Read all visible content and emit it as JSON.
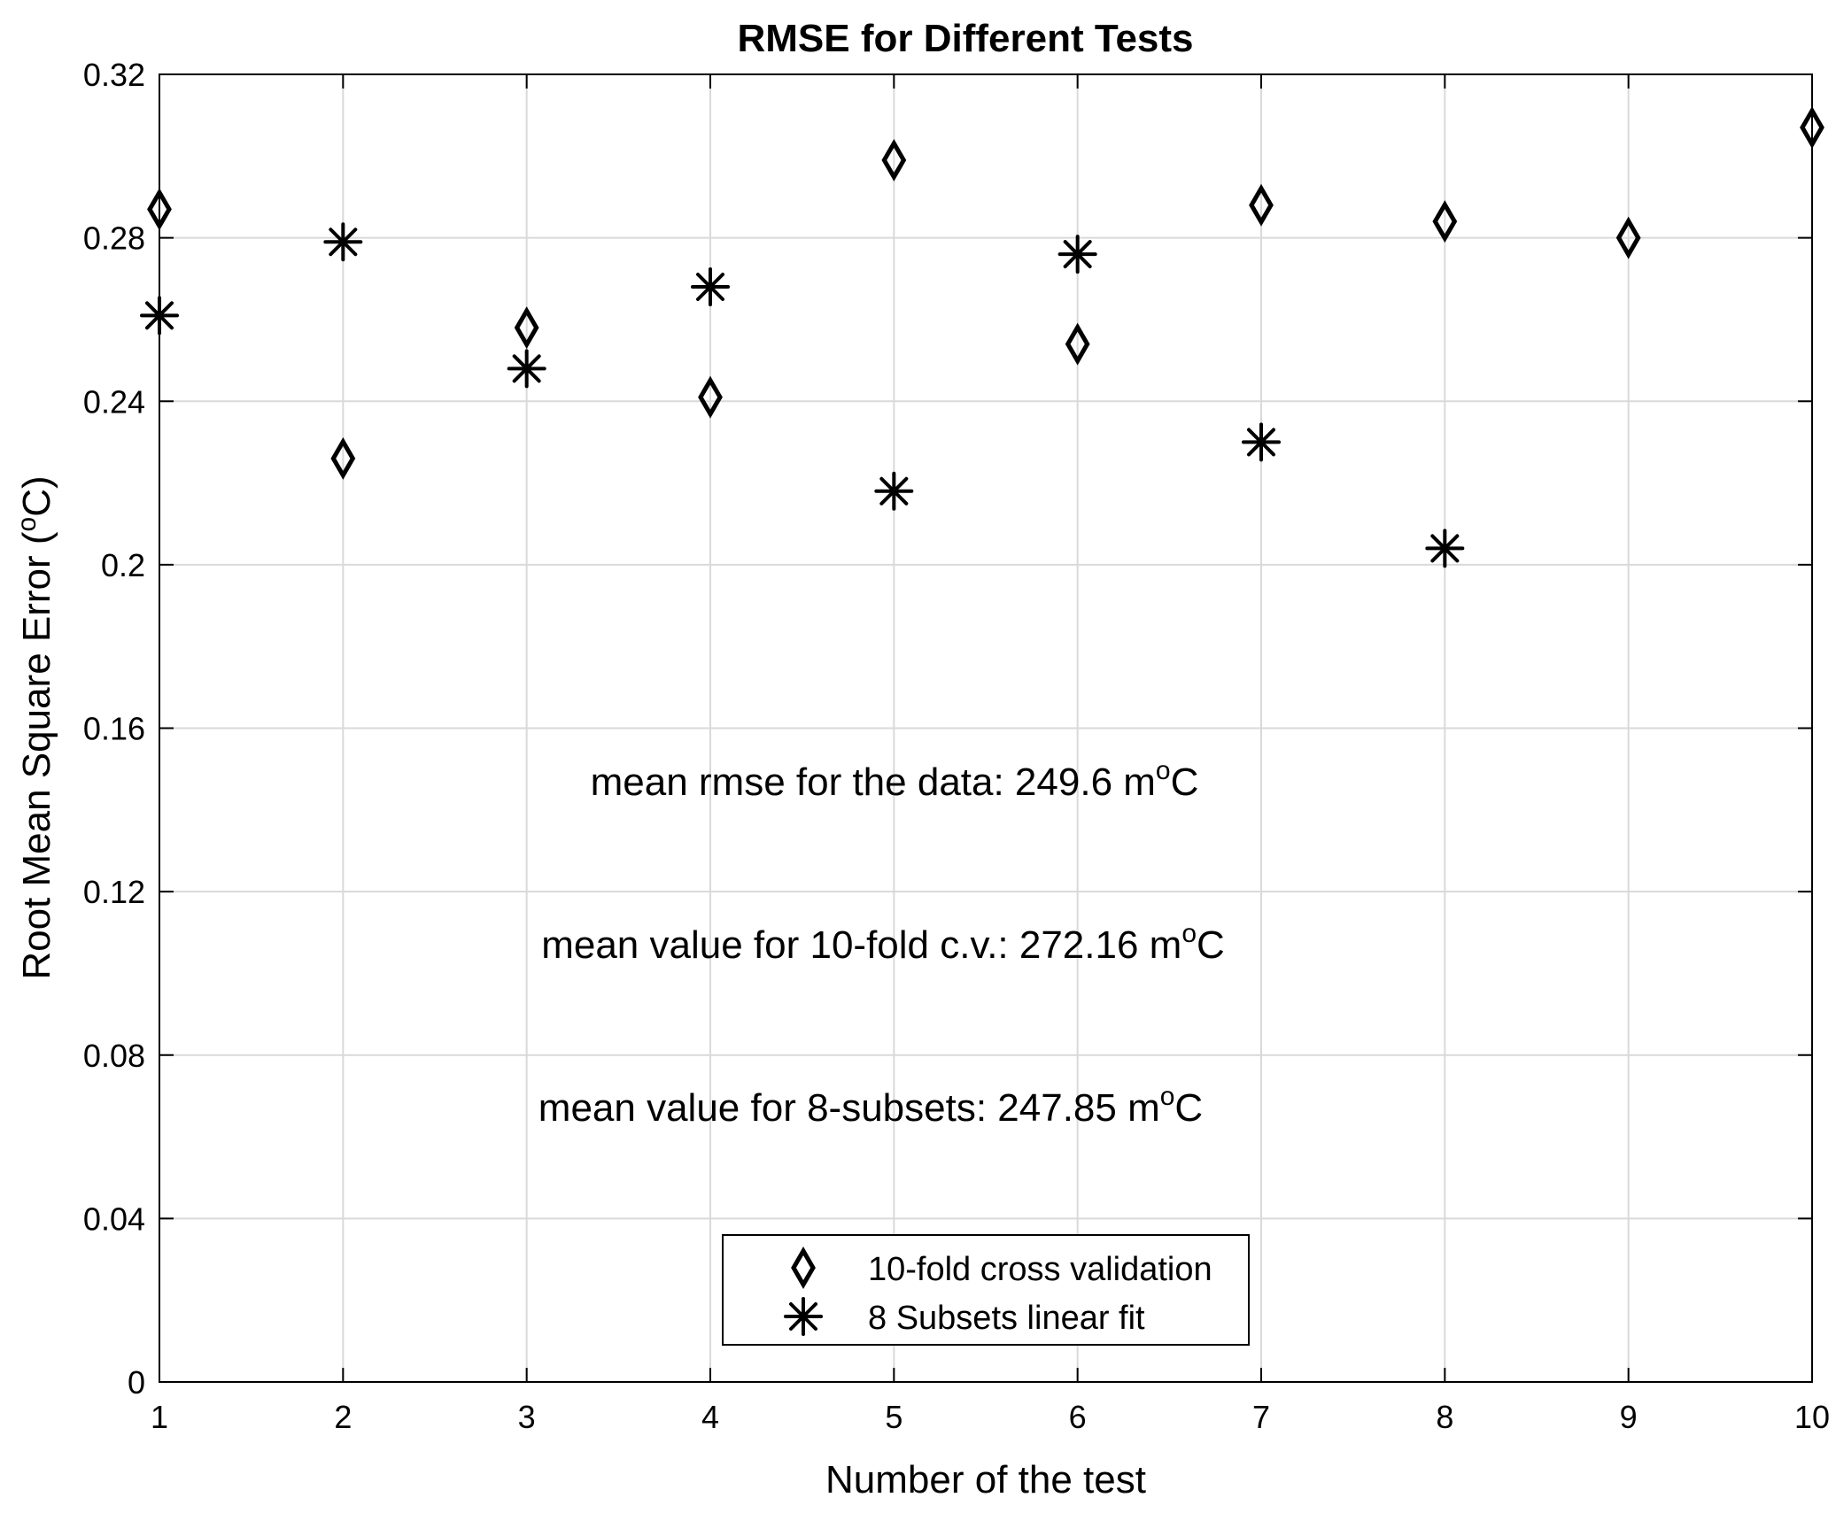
{
  "chart_data": {
    "type": "scatter",
    "title": "RMSE for Different Tests",
    "xlabel": "Number of the test",
    "ylabel": {
      "main": "Root Mean Square Error (",
      "sup": "o",
      "unit": "C)"
    },
    "xlim": [
      1,
      10
    ],
    "ylim": [
      0,
      0.32
    ],
    "xticks": [
      "1",
      "2",
      "3",
      "4",
      "5",
      "6",
      "7",
      "8",
      "9",
      "10"
    ],
    "yticks": [
      "0",
      "0.04",
      "0.08",
      "0.12",
      "0.16",
      "0.2",
      "0.24",
      "0.28",
      "0.32"
    ],
    "grid": true,
    "series": [
      {
        "name": "10-fold cross validation",
        "marker": "diamond",
        "x": [
          1,
          2,
          3,
          4,
          5,
          6,
          7,
          8,
          9,
          10
        ],
        "values": [
          0.287,
          0.226,
          0.258,
          0.241,
          0.299,
          0.254,
          0.288,
          0.284,
          0.28,
          0.307
        ]
      },
      {
        "name": "8 Subsets linear fit",
        "marker": "asterisk",
        "x": [
          1,
          2,
          3,
          4,
          5,
          6,
          7,
          8
        ],
        "values": [
          0.261,
          0.279,
          0.248,
          0.268,
          0.218,
          0.276,
          0.23,
          0.204
        ]
      }
    ],
    "annotations": [
      {
        "text": "mean rmse for the data: 249.6 m",
        "sup": "o",
        "tail": "C"
      },
      {
        "text": "mean value for 10-fold c.v.: 272.16 m",
        "sup": "o",
        "tail": "C"
      },
      {
        "text": "mean value for 8-subsets: 247.85 m",
        "sup": "o",
        "tail": "C"
      }
    ],
    "legend": {
      "position": "bottom-center"
    }
  }
}
